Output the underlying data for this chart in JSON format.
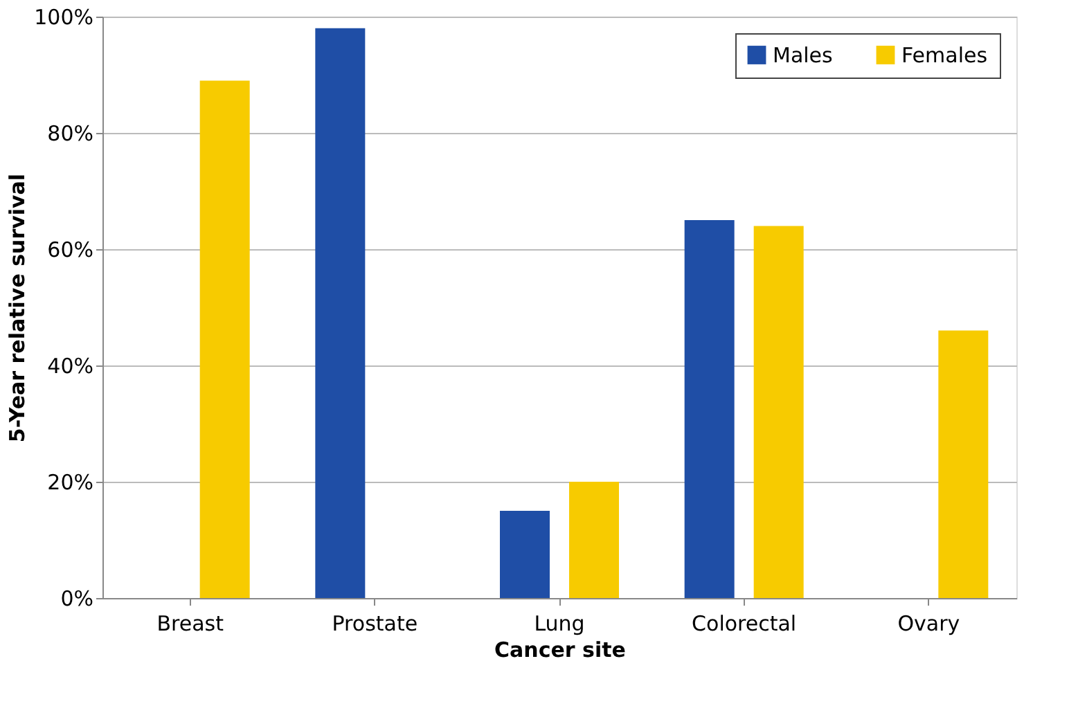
{
  "chart_data": {
    "type": "bar",
    "xlabel": "Cancer site",
    "ylabel": "5-Year relative survival",
    "categories": [
      "Breast",
      "Prostate",
      "Lung",
      "Colorectal",
      "Ovary"
    ],
    "series": [
      {
        "name": "Males",
        "color": "#1f4ea6",
        "values": [
          null,
          98,
          15,
          65,
          null
        ]
      },
      {
        "name": "Females",
        "color": "#f7cb00",
        "values": [
          89,
          null,
          20,
          64,
          46
        ]
      }
    ],
    "ylim": [
      0,
      100
    ],
    "yticks": [
      {
        "value": 0,
        "label": "0%"
      },
      {
        "value": 20,
        "label": "20%"
      },
      {
        "value": 40,
        "label": "40%"
      },
      {
        "value": 60,
        "label": "60%"
      },
      {
        "value": 80,
        "label": "80%"
      },
      {
        "value": 100,
        "label": "100%"
      }
    ],
    "grid": "y",
    "legend": "top right"
  }
}
